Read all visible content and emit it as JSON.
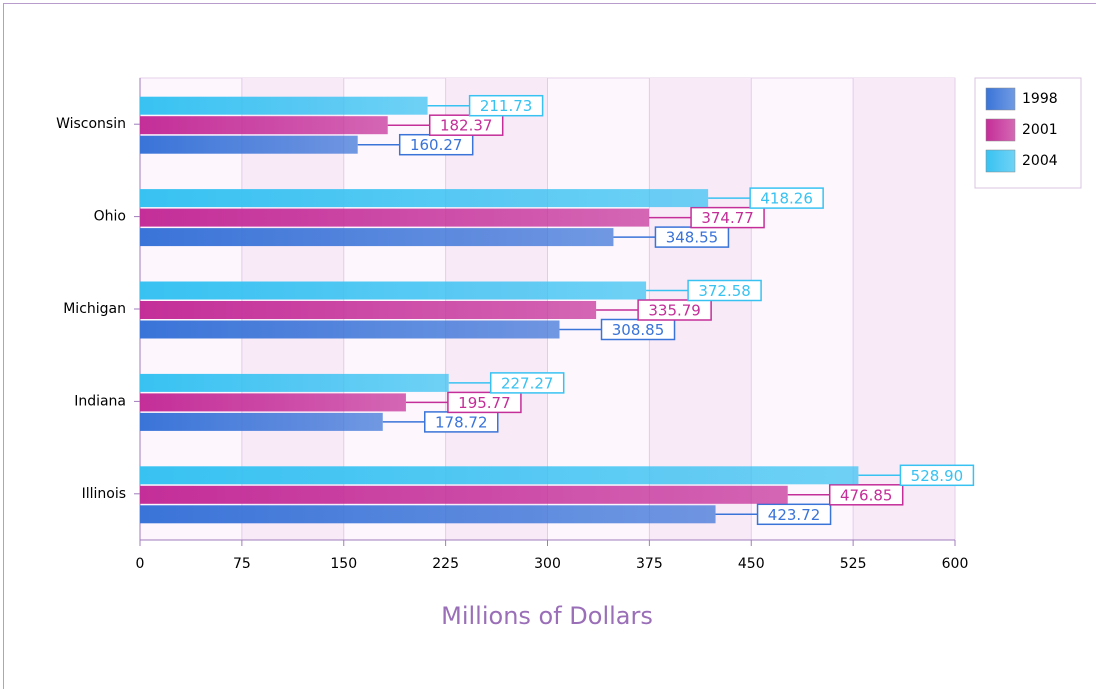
{
  "chart_data": {
    "type": "bar",
    "orientation": "horizontal",
    "x_label": "Millions of Dollars",
    "categories": [
      "Illinois",
      "Indiana",
      "Michigan",
      "Ohio",
      "Wisconsin"
    ],
    "series": [
      {
        "name": "1998",
        "color": "#3a74d8",
        "values": [
          423.72,
          178.72,
          308.85,
          348.55,
          160.27
        ],
        "value_labels": [
          "423.72",
          "178.72",
          "308.85",
          "348.55",
          "160.27"
        ]
      },
      {
        "name": "2001",
        "color": "#c42e98",
        "values": [
          476.85,
          195.77,
          335.79,
          374.77,
          182.37
        ],
        "value_labels": [
          "476.85",
          "195.77",
          "335.79",
          "374.77",
          "182.37"
        ]
      },
      {
        "name": "2004",
        "color": "#38c2f2",
        "values": [
          528.9,
          227.27,
          372.58,
          418.26,
          211.73
        ],
        "value_labels": [
          "528.90",
          "227.27",
          "372.58",
          "418.26",
          "211.73"
        ]
      }
    ],
    "xlim": [
      0,
      600
    ],
    "xticks": [
      0,
      75,
      150,
      225,
      300,
      375,
      450,
      525,
      600
    ],
    "grid": true,
    "legend": "top-right"
  }
}
